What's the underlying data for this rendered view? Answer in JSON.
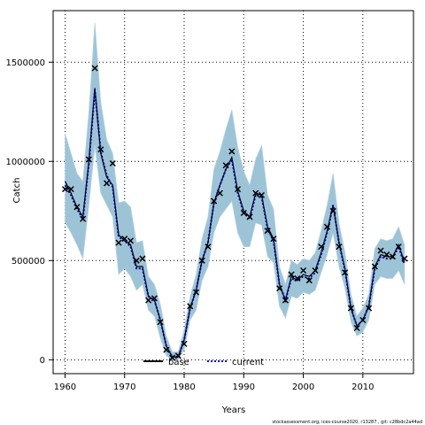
{
  "chart_data": {
    "type": "line",
    "xlabel": "Years",
    "ylabel": "Catch",
    "xlim": [
      1958.0,
      2018.5
    ],
    "ylim": [
      -70000,
      1760000
    ],
    "x_ticks": [
      1960,
      1970,
      1980,
      1990,
      2000,
      2010
    ],
    "y_ticks": [
      0,
      500000,
      1000000,
      1500000
    ],
    "y_tick_labels": [
      "0",
      "500000",
      "1000000",
      "1500000"
    ],
    "grid": true,
    "legend": {
      "placement": "bottom-center",
      "entries": [
        {
          "label": "base",
          "style": "solid",
          "color": "#000000"
        },
        {
          "label": "current",
          "style": "dotted",
          "color": "#00008b"
        }
      ]
    },
    "band_color": "#9dc3d6",
    "footer": "stockassessment.org, ices-course2020, r13287 , git: c28bdc2a44ad",
    "series": [
      {
        "name": "base",
        "x": [
          1960,
          1961,
          1962,
          1963,
          1964,
          1965,
          1966,
          1967,
          1968,
          1969,
          1970,
          1971,
          1972,
          1973,
          1974,
          1975,
          1976,
          1977,
          1978,
          1979,
          1980,
          1981,
          1982,
          1983,
          1984,
          1985,
          1986,
          1987,
          1988,
          1989,
          1990,
          1991,
          1992,
          1993,
          1994,
          1995,
          1996,
          1997,
          1998,
          1999,
          2000,
          2001,
          2002,
          2003,
          2004,
          2005,
          2006,
          2007,
          2008,
          2009,
          2010,
          2011,
          2012,
          2013,
          2014,
          2015,
          2016,
          2017
        ],
        "values": [
          900000,
          840000,
          770000,
          720000,
          1000000,
          1370000,
          1040000,
          920000,
          880000,
          630000,
          600000,
          580000,
          470000,
          470000,
          320000,
          300000,
          200000,
          70000,
          15000,
          15000,
          100000,
          260000,
          350000,
          500000,
          590000,
          790000,
          880000,
          960000,
          1020000,
          850000,
          750000,
          720000,
          840000,
          830000,
          670000,
          610000,
          380000,
          300000,
          420000,
          400000,
          430000,
          420000,
          450000,
          540000,
          650000,
          780000,
          590000,
          460000,
          260000,
          170000,
          200000,
          270000,
          470000,
          530000,
          520000,
          520000,
          580000,
          490000
        ]
      },
      {
        "name": "current",
        "x": [
          1960,
          1961,
          1962,
          1963,
          1964,
          1965,
          1966,
          1967,
          1968,
          1969,
          1970,
          1971,
          1972,
          1973,
          1974,
          1975,
          1976,
          1977,
          1978,
          1979,
          1980,
          1981,
          1982,
          1983,
          1984,
          1985,
          1986,
          1987,
          1988,
          1989,
          1990,
          1991,
          1992,
          1993,
          1994,
          1995,
          1996,
          1997,
          1998,
          1999,
          2000,
          2001,
          2002,
          2003,
          2004,
          2005,
          2006,
          2007,
          2008,
          2009,
          2010,
          2011,
          2012,
          2013,
          2014,
          2015,
          2016,
          2017
        ],
        "values": [
          880000,
          830000,
          760000,
          710000,
          990000,
          1360000,
          1050000,
          930000,
          870000,
          620000,
          600000,
          570000,
          460000,
          460000,
          320000,
          300000,
          200000,
          70000,
          15000,
          15000,
          100000,
          260000,
          350000,
          500000,
          590000,
          790000,
          880000,
          960000,
          1010000,
          840000,
          740000,
          710000,
          830000,
          820000,
          660000,
          600000,
          380000,
          300000,
          410000,
          400000,
          420000,
          410000,
          440000,
          530000,
          640000,
          780000,
          590000,
          450000,
          260000,
          170000,
          200000,
          270000,
          460000,
          520000,
          510000,
          510000,
          570000,
          480000
        ]
      }
    ],
    "confidence_band": {
      "x": [
        1960,
        1961,
        1962,
        1963,
        1964,
        1965,
        1966,
        1967,
        1968,
        1969,
        1970,
        1971,
        1972,
        1973,
        1974,
        1975,
        1976,
        1977,
        1978,
        1979,
        1980,
        1981,
        1982,
        1983,
        1984,
        1985,
        1986,
        1987,
        1988,
        1989,
        1990,
        1991,
        1992,
        1993,
        1994,
        1995,
        1996,
        1997,
        1998,
        1999,
        2000,
        2001,
        2002,
        2003,
        2004,
        2005,
        2006,
        2007,
        2008,
        2009,
        2010,
        2011,
        2012,
        2013,
        2014,
        2015,
        2016,
        2017
      ],
      "lower": [
        690000,
        640000,
        580000,
        510000,
        780000,
        1080000,
        840000,
        780000,
        720000,
        430000,
        460000,
        420000,
        350000,
        380000,
        250000,
        220000,
        110000,
        20000,
        0,
        0,
        50000,
        200000,
        250000,
        400000,
        470000,
        640000,
        720000,
        760000,
        800000,
        640000,
        570000,
        570000,
        690000,
        680000,
        520000,
        490000,
        270000,
        210000,
        320000,
        310000,
        340000,
        330000,
        350000,
        440000,
        530000,
        640000,
        470000,
        360000,
        190000,
        120000,
        140000,
        200000,
        380000,
        420000,
        410000,
        410000,
        450000,
        380000
      ],
      "upper": [
        1140000,
        1040000,
        940000,
        900000,
        1250000,
        1700000,
        1300000,
        1110000,
        1040000,
        790000,
        800000,
        770000,
        590000,
        600000,
        420000,
        380000,
        280000,
        120000,
        40000,
        40000,
        150000,
        320000,
        430000,
        610000,
        720000,
        960000,
        1050000,
        1160000,
        1260000,
        1070000,
        950000,
        880000,
        1010000,
        1080000,
        830000,
        760000,
        470000,
        380000,
        500000,
        480000,
        510000,
        500000,
        540000,
        650000,
        780000,
        940000,
        690000,
        540000,
        330000,
        220000,
        260000,
        330000,
        560000,
        610000,
        600000,
        610000,
        670000,
        580000
      ]
    },
    "observed": {
      "x": [
        1960,
        1961,
        1962,
        1963,
        1964,
        1965,
        1966,
        1967,
        1968,
        1969,
        1970,
        1971,
        1972,
        1973,
        1974,
        1975,
        1976,
        1977,
        1978,
        1979,
        1980,
        1981,
        1982,
        1983,
        1984,
        1985,
        1986,
        1987,
        1988,
        1989,
        1990,
        1991,
        1992,
        1993,
        1994,
        1995,
        1996,
        1997,
        1998,
        1999,
        2000,
        2001,
        2002,
        2003,
        2004,
        2005,
        2006,
        2007,
        2008,
        2009,
        2010,
        2011,
        2012,
        2013,
        2014,
        2015,
        2016,
        2017
      ],
      "y": [
        860000,
        860000,
        770000,
        710000,
        1010000,
        1470000,
        1060000,
        890000,
        990000,
        590000,
        610000,
        600000,
        500000,
        510000,
        300000,
        310000,
        190000,
        50000,
        10000,
        20000,
        80000,
        270000,
        340000,
        500000,
        570000,
        800000,
        840000,
        980000,
        1050000,
        860000,
        740000,
        720000,
        840000,
        830000,
        650000,
        610000,
        360000,
        300000,
        430000,
        410000,
        450000,
        400000,
        450000,
        570000,
        670000,
        750000,
        570000,
        440000,
        260000,
        160000,
        200000,
        260000,
        470000,
        550000,
        530000,
        520000,
        570000,
        510000
      ]
    }
  }
}
